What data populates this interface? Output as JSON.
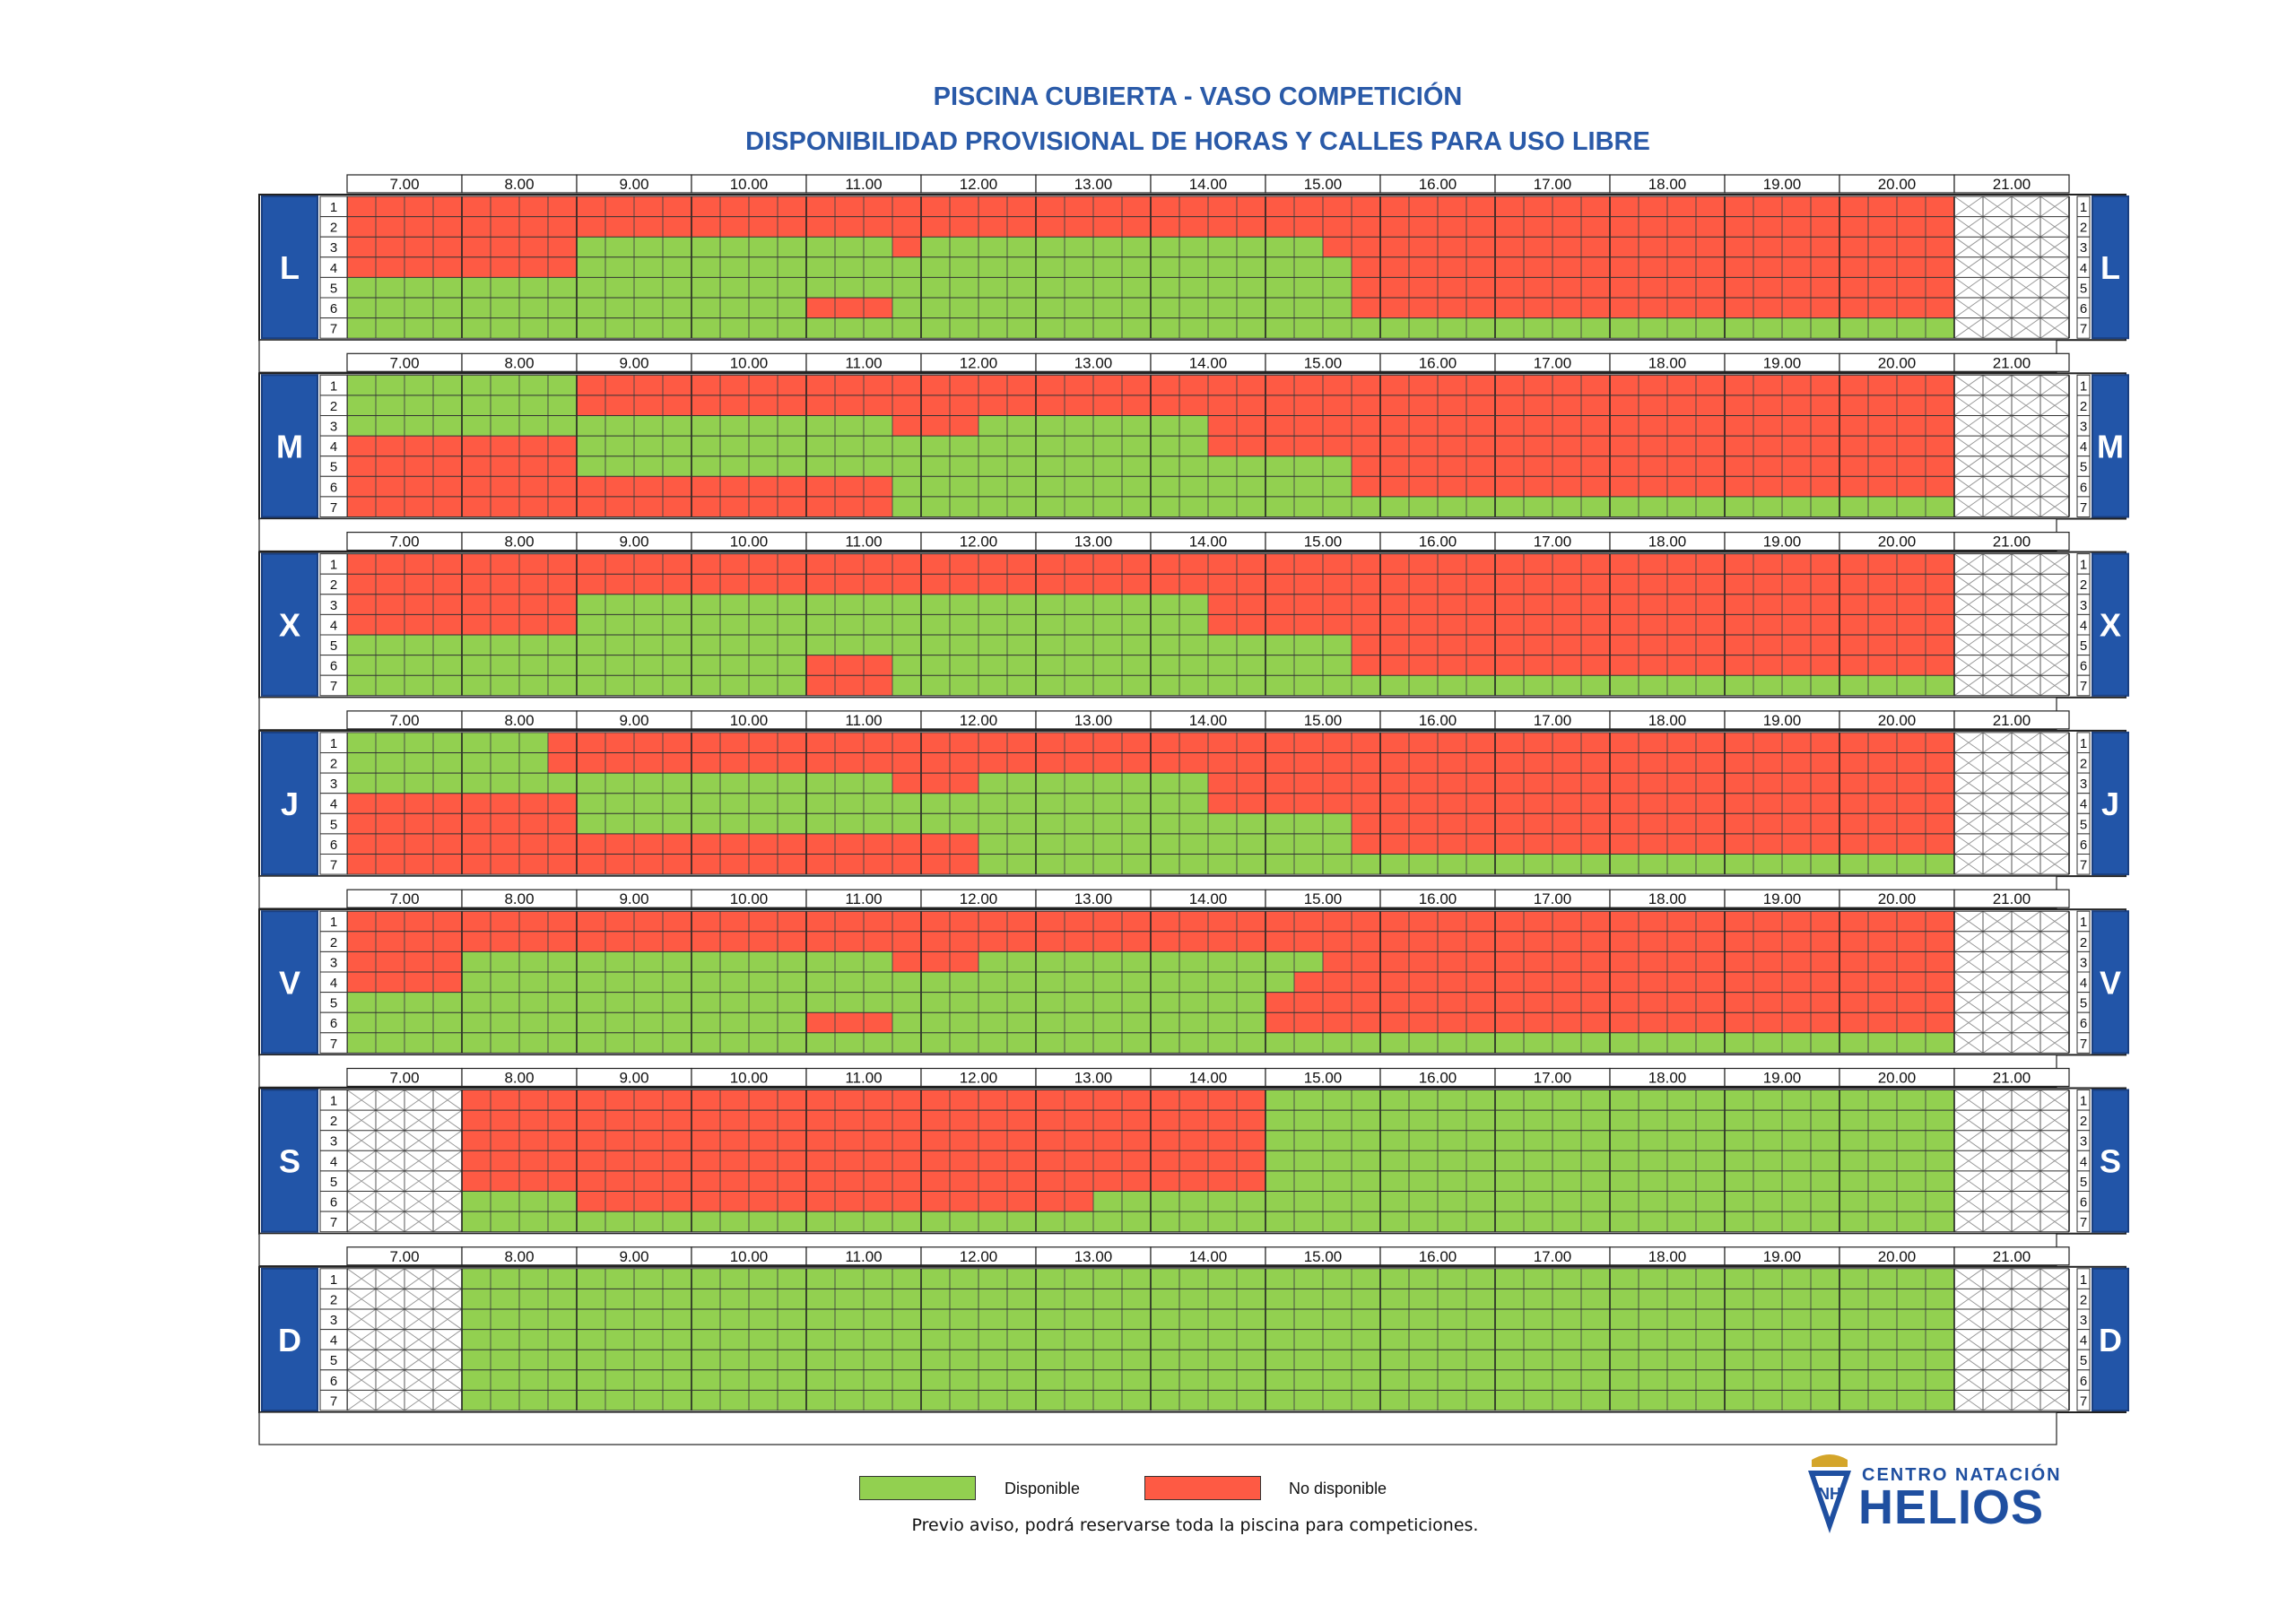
{
  "header": {
    "title": "PISCINA CUBIERTA - VASO COMPETICIÓN",
    "subtitle": "DISPONIBILIDAD PROVISIONAL DE HORAS Y CALLES PARA USO LIBRE"
  },
  "hours": [
    "7.00",
    "8.00",
    "9.00",
    "10.00",
    "11.00",
    "12.00",
    "13.00",
    "14.00",
    "15.00",
    "16.00",
    "17.00",
    "18.00",
    "19.00",
    "20.00",
    "21.00"
  ],
  "lanes": [
    "1",
    "2",
    "3",
    "4",
    "5",
    "6",
    "7"
  ],
  "colors": {
    "available": "#92d050",
    "unavailable": "#fe5a44",
    "closed": "#ffffff",
    "day_badge": "#2255a8",
    "title": "#2a5aa8"
  },
  "days": [
    {
      "label": "L",
      "closed_hours": [
        14
      ],
      "red_intervals_per_lane": [
        [
          [
            0,
            14
          ]
        ],
        [
          [
            0,
            14
          ]
        ],
        [
          [
            0,
            2
          ],
          [
            4.75,
            5
          ],
          [
            8.5,
            14
          ]
        ],
        [
          [
            0,
            2
          ],
          [
            8.75,
            14
          ]
        ],
        [
          [
            8.75,
            14
          ]
        ],
        [
          [
            4,
            4.75
          ],
          [
            8.75,
            14
          ]
        ],
        []
      ]
    },
    {
      "label": "M",
      "closed_hours": [
        14
      ],
      "red_intervals_per_lane": [
        [
          [
            2,
            14
          ]
        ],
        [
          [
            2,
            14
          ]
        ],
        [
          [
            4.75,
            5.5
          ],
          [
            7.5,
            14
          ]
        ],
        [
          [
            0,
            2
          ],
          [
            7.5,
            14
          ]
        ],
        [
          [
            0,
            2
          ],
          [
            8.75,
            14
          ]
        ],
        [
          [
            0,
            4.75
          ],
          [
            8.75,
            14
          ]
        ],
        [
          [
            0,
            4.75
          ]
        ]
      ]
    },
    {
      "label": "X",
      "closed_hours": [
        14
      ],
      "red_intervals_per_lane": [
        [
          [
            0,
            14
          ]
        ],
        [
          [
            0,
            14
          ]
        ],
        [
          [
            0,
            2
          ],
          [
            7.5,
            14
          ]
        ],
        [
          [
            0,
            2
          ],
          [
            7.5,
            14
          ]
        ],
        [
          [
            8.75,
            14
          ]
        ],
        [
          [
            4,
            4.75
          ],
          [
            8.75,
            14
          ]
        ],
        [
          [
            4,
            4.75
          ]
        ]
      ]
    },
    {
      "label": "J",
      "closed_hours": [
        14
      ],
      "red_intervals_per_lane": [
        [
          [
            1.75,
            14
          ]
        ],
        [
          [
            1.75,
            14
          ]
        ],
        [
          [
            4.75,
            5.5
          ],
          [
            7.5,
            14
          ]
        ],
        [
          [
            0,
            2
          ],
          [
            7.5,
            14
          ]
        ],
        [
          [
            0,
            2
          ],
          [
            8.75,
            14
          ]
        ],
        [
          [
            0,
            5.5
          ],
          [
            8.75,
            14
          ]
        ],
        [
          [
            0,
            5.5
          ]
        ]
      ]
    },
    {
      "label": "V",
      "closed_hours": [
        14
      ],
      "red_intervals_per_lane": [
        [
          [
            0,
            14
          ]
        ],
        [
          [
            0,
            14
          ]
        ],
        [
          [
            0,
            1
          ],
          [
            4.75,
            5.5
          ],
          [
            8.5,
            14
          ]
        ],
        [
          [
            0,
            1
          ],
          [
            8.25,
            14
          ]
        ],
        [
          [
            8,
            14
          ]
        ],
        [
          [
            4,
            4.75
          ],
          [
            8,
            14
          ]
        ],
        []
      ]
    },
    {
      "label": "S",
      "closed_hours": [
        0,
        14
      ],
      "red_intervals_per_lane": [
        [
          [
            1,
            8
          ]
        ],
        [
          [
            1,
            8
          ]
        ],
        [
          [
            1,
            8
          ]
        ],
        [
          [
            1,
            8
          ]
        ],
        [
          [
            1,
            8
          ]
        ],
        [
          [
            2,
            6.5
          ]
        ],
        []
      ]
    },
    {
      "label": "D",
      "closed_hours": [
        0,
        14
      ],
      "red_intervals_per_lane": [
        [],
        [],
        [],
        [],
        [],
        [],
        []
      ]
    }
  ],
  "legend": {
    "available_label": "Disponible",
    "unavailable_label": "No disponible"
  },
  "note": "Previo aviso, podrá reservarse toda la piscina para competiciones.",
  "logo": {
    "top_text": "CENTRO NATACIÓN",
    "main_text": "HELIOS"
  }
}
